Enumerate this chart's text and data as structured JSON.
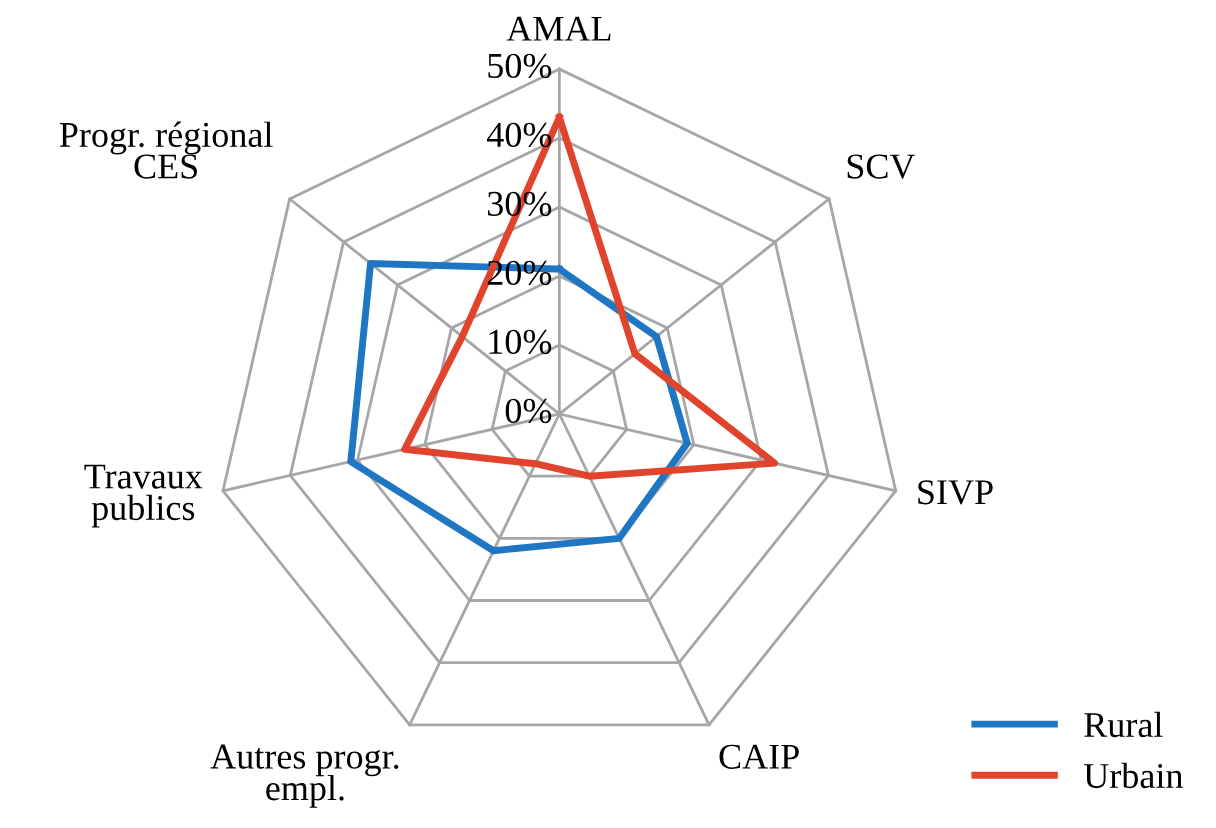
{
  "chart_data": {
    "type": "radar",
    "categories": [
      "AMAL",
      "SCV",
      "SIVP",
      "CAIP",
      "Autres progr.\nempl.",
      "Travaux\npublics",
      "Progr. régional\nCES"
    ],
    "series": [
      {
        "name": "Rural",
        "color": "#1f77c4",
        "values": [
          21,
          18,
          19,
          20,
          22,
          31,
          35
        ]
      },
      {
        "name": "Urbain",
        "color": "#e0442c",
        "values": [
          43,
          14,
          32,
          10,
          8,
          23,
          18
        ]
      }
    ],
    "ylim": [
      0,
      50
    ],
    "yticks": [
      {
        "value": 0,
        "label": "0%"
      },
      {
        "value": 10,
        "label": "10%"
      },
      {
        "value": 20,
        "label": "20%"
      },
      {
        "value": 30,
        "label": "30%"
      },
      {
        "value": 40,
        "label": "40%"
      },
      {
        "value": 50,
        "label": "50%"
      }
    ],
    "grid": true,
    "legend": "bottom right",
    "marker": "none",
    "line_style": "solid"
  }
}
